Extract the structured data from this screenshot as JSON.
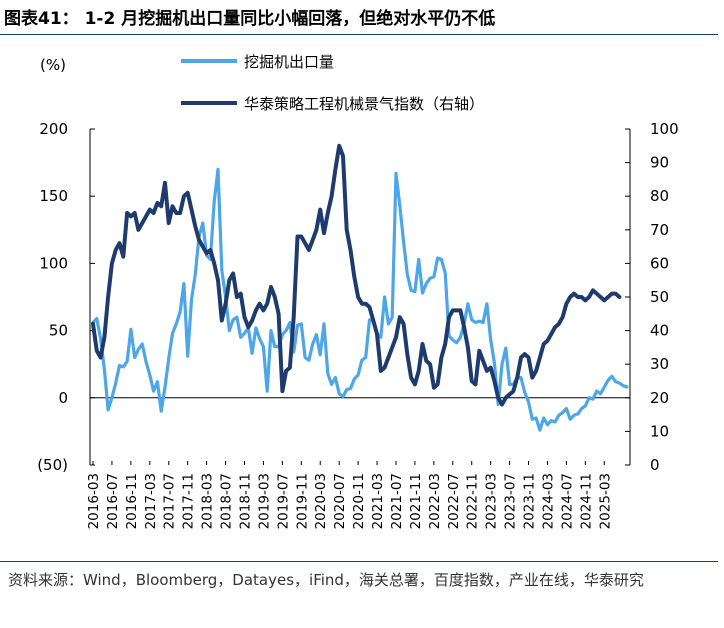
{
  "header": {
    "title": "图表41： 1-2 月挖掘机出口量同比小幅回落，但绝对水平仍不低"
  },
  "source": {
    "text": "资料来源：Wind，Bloomberg，Datayes，iFind，海关总署，百度指数，产业在线，华泰研究"
  },
  "chart_data": {
    "type": "line",
    "unit_label": "(%)",
    "left_axis": {
      "ticks": [
        200,
        150,
        100,
        50,
        0,
        -50
      ],
      "tick_labels": [
        "200",
        "150",
        "100",
        "50",
        "0",
        "(50)"
      ],
      "ylim": [
        -50,
        200
      ]
    },
    "right_axis": {
      "ticks": [
        100,
        90,
        80,
        70,
        60,
        50,
        40,
        30,
        20,
        10,
        0
      ],
      "tick_labels": [
        "100",
        "90",
        "80",
        "70",
        "60",
        "50",
        "40",
        "30",
        "20",
        "10",
        "0"
      ],
      "ylim": [
        0,
        100
      ]
    },
    "x_tick_labels": [
      "2016-03",
      "2016-07",
      "2016-11",
      "2017-03",
      "2017-07",
      "2017-11",
      "2018-03",
      "2018-07",
      "2018-11",
      "2019-03",
      "2019-07",
      "2019-11",
      "2020-03",
      "2020-07",
      "2020-11",
      "2021-03",
      "2021-07",
      "2021-11",
      "2022-03",
      "2022-07",
      "2022-11",
      "2023-03",
      "2023-07",
      "2023-11",
      "2024-03",
      "2024-07",
      "2024-11",
      "2025-03"
    ],
    "x_start": "2016-03",
    "x_end": "2025-03",
    "legend_position": "top",
    "series": [
      {
        "name": "挖掘机出口量",
        "axis": "left",
        "color": "#4da6e8",
        "values": [
          56,
          59,
          44,
          21,
          -9,
          0,
          11,
          24,
          23,
          27,
          51,
          30,
          36,
          40,
          27,
          17,
          5,
          12,
          -10,
          8,
          29,
          48,
          55,
          64,
          85,
          31,
          73,
          92,
          120,
          130,
          106,
          103,
          146,
          170,
          95,
          75,
          50,
          58,
          60,
          45,
          48,
          52,
          33,
          52,
          44,
          38,
          5,
          50,
          38,
          38,
          47,
          50,
          56,
          34,
          54,
          55,
          30,
          28,
          40,
          47,
          32,
          55,
          18,
          10,
          15,
          3,
          1,
          6,
          7,
          14,
          17,
          28,
          30,
          58,
          57,
          47,
          45,
          75,
          55,
          60,
          167,
          143,
          116,
          92,
          80,
          79,
          103,
          78,
          85,
          89,
          90,
          104,
          103,
          93,
          46,
          43,
          41,
          45,
          55,
          70,
          58,
          56,
          57,
          56,
          70,
          43,
          26,
          -5,
          25,
          37,
          10,
          10,
          15,
          15,
          4,
          -3,
          -16,
          -15,
          -24,
          -15,
          -20,
          -17,
          -18,
          -13,
          -11,
          -8,
          -16,
          -13,
          -12,
          -8,
          -6,
          0,
          -1,
          5,
          3,
          8,
          13,
          16,
          12,
          11,
          9,
          8
        ]
      },
      {
        "name": "华泰策略工程机械景气指数（右轴）",
        "axis": "right",
        "color": "#1f3b6e",
        "values": [
          42,
          34,
          32,
          38,
          50,
          60,
          64,
          66,
          62,
          75,
          74,
          75,
          70,
          72,
          74,
          76,
          75,
          78,
          77,
          84,
          72,
          77,
          75,
          75,
          80,
          81,
          76,
          71,
          67,
          65,
          63,
          64,
          60,
          55,
          43,
          48,
          55,
          57,
          50,
          51,
          44,
          41,
          43,
          46,
          48,
          46,
          48,
          53,
          50,
          45,
          22,
          28,
          29,
          44,
          68,
          68,
          66,
          64,
          67,
          70,
          76,
          69,
          75,
          80,
          88,
          95,
          92,
          70,
          64,
          56,
          50,
          48,
          48,
          47,
          43,
          39,
          28,
          29,
          32,
          35,
          38,
          44,
          42,
          33,
          26,
          24,
          28,
          36,
          31,
          30,
          23,
          24,
          32,
          36,
          44,
          46,
          46,
          46,
          41,
          35,
          25,
          24,
          34,
          31,
          28,
          29,
          25,
          20,
          18,
          20,
          21,
          22,
          26,
          32,
          33,
          32,
          26,
          28,
          32,
          36,
          37,
          39,
          41,
          42,
          44,
          48,
          50,
          51,
          50,
          50,
          49,
          50,
          52,
          51,
          50,
          49,
          50,
          51,
          51,
          50
        ]
      }
    ]
  }
}
